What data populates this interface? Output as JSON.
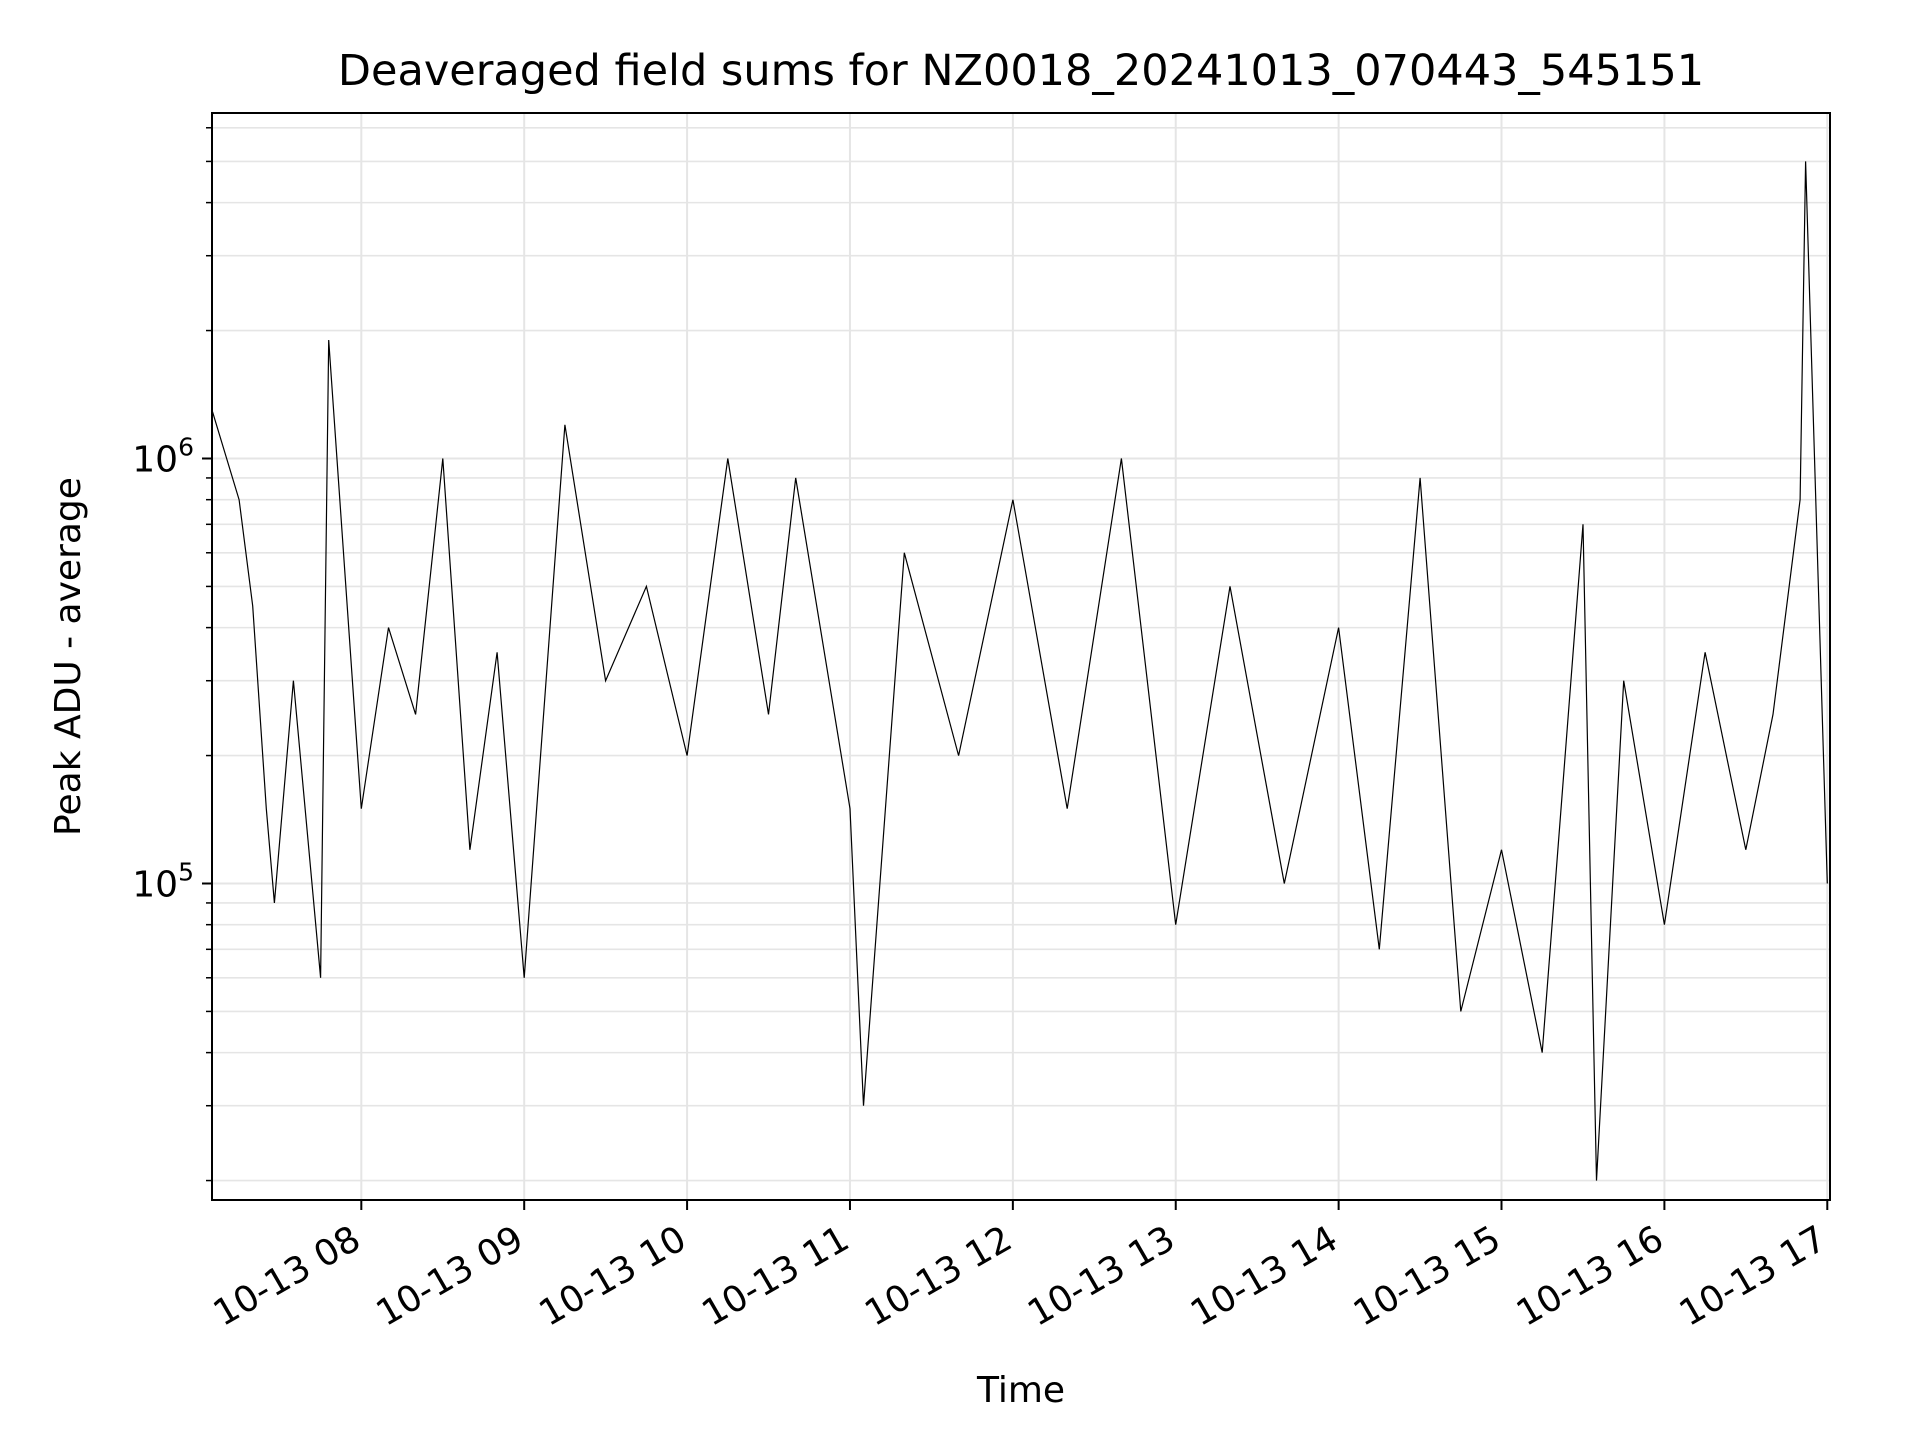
{
  "chart_data": {
    "type": "line",
    "title": "Deaveraged field sums for NZ0018_20241013_070443_545151",
    "xlabel": "Time",
    "ylabel": "Peak ADU - average",
    "xscale": "time",
    "yscale": "log",
    "xlim": [
      "2024-10-13 07:05",
      "2024-10-13 17:01"
    ],
    "ylim": [
      18000,
      6500000
    ],
    "grid": true,
    "legend": "none",
    "line_color": "#000000",
    "grid_color": "#e5e5e5",
    "x_ticks": [
      {
        "value": "2024-10-13 08:00",
        "label": "10-13 08"
      },
      {
        "value": "2024-10-13 09:00",
        "label": "10-13 09"
      },
      {
        "value": "2024-10-13 10:00",
        "label": "10-13 10"
      },
      {
        "value": "2024-10-13 11:00",
        "label": "10-13 11"
      },
      {
        "value": "2024-10-13 12:00",
        "label": "10-13 12"
      },
      {
        "value": "2024-10-13 13:00",
        "label": "10-13 13"
      },
      {
        "value": "2024-10-13 14:00",
        "label": "10-13 14"
      },
      {
        "value": "2024-10-13 15:00",
        "label": "10-13 15"
      },
      {
        "value": "2024-10-13 16:00",
        "label": "10-13 16"
      },
      {
        "value": "2024-10-13 17:00",
        "label": "10-13 17"
      }
    ],
    "y_ticks": [
      {
        "value": 100000,
        "base": "10",
        "exp": "5"
      },
      {
        "value": 1000000,
        "base": "10",
        "exp": "6"
      }
    ],
    "series": [
      {
        "x": [
          "2024-10-13 07:05",
          "2024-10-13 07:15",
          "2024-10-13 07:20",
          "2024-10-13 07:25",
          "2024-10-13 07:28",
          "2024-10-13 07:35",
          "2024-10-13 07:45",
          "2024-10-13 07:48",
          "2024-10-13 08:00",
          "2024-10-13 08:10",
          "2024-10-13 08:20",
          "2024-10-13 08:30",
          "2024-10-13 08:40",
          "2024-10-13 08:50",
          "2024-10-13 09:00",
          "2024-10-13 09:15",
          "2024-10-13 09:30",
          "2024-10-13 09:45",
          "2024-10-13 10:00",
          "2024-10-13 10:15",
          "2024-10-13 10:30",
          "2024-10-13 10:40",
          "2024-10-13 11:00",
          "2024-10-13 11:05",
          "2024-10-13 11:20",
          "2024-10-13 11:40",
          "2024-10-13 12:00",
          "2024-10-13 12:20",
          "2024-10-13 12:40",
          "2024-10-13 13:00",
          "2024-10-13 13:20",
          "2024-10-13 13:40",
          "2024-10-13 14:00",
          "2024-10-13 14:15",
          "2024-10-13 14:30",
          "2024-10-13 14:45",
          "2024-10-13 15:00",
          "2024-10-13 15:15",
          "2024-10-13 15:30",
          "2024-10-13 15:35",
          "2024-10-13 15:45",
          "2024-10-13 16:00",
          "2024-10-13 16:15",
          "2024-10-13 16:30",
          "2024-10-13 16:40",
          "2024-10-13 16:50",
          "2024-10-13 16:52",
          "2024-10-13 17:00"
        ],
        "y": [
          1300000,
          800000,
          450000,
          150000,
          90000,
          300000,
          60000,
          1900000,
          150000,
          400000,
          250000,
          1000000,
          120000,
          350000,
          60000,
          1200000,
          300000,
          500000,
          200000,
          1000000,
          250000,
          900000,
          150000,
          30000,
          600000,
          200000,
          800000,
          150000,
          1000000,
          80000,
          500000,
          100000,
          400000,
          70000,
          900000,
          50000,
          120000,
          40000,
          700000,
          20000,
          300000,
          80000,
          350000,
          120000,
          250000,
          800000,
          5000000,
          100000
        ]
      }
    ]
  }
}
